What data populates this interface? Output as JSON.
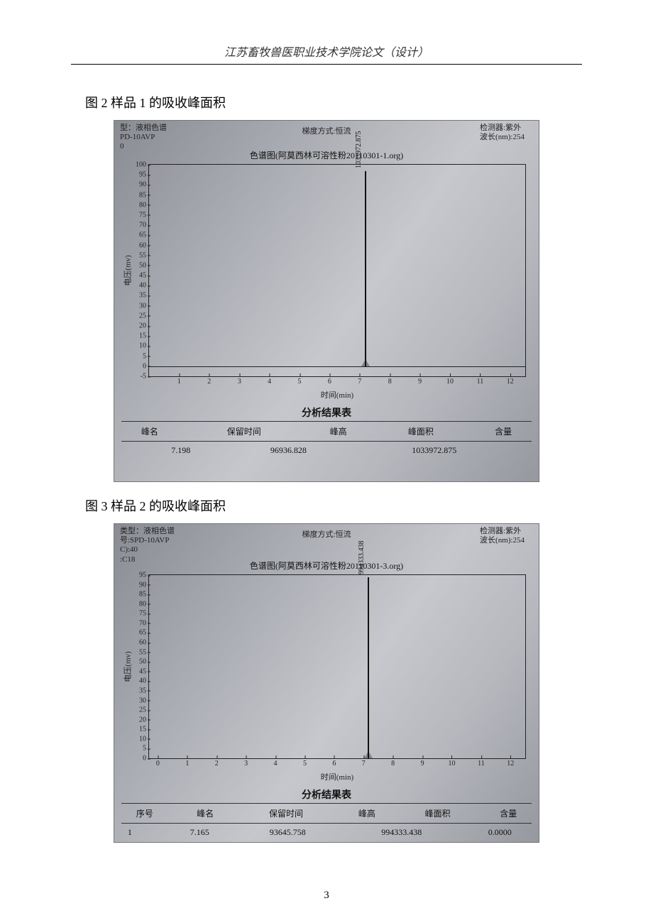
{
  "header": "江苏畜牧兽医职业技术学院论文（设计）",
  "page_number": "3",
  "figure1": {
    "caption": "图 2 样品 1 的吸收峰面积",
    "top_left": "型：液相色谱\nPD-10AVP\n0",
    "top_mid": "梯度方式:恒流",
    "top_right": "检测器:紫外\n波长(nm):254",
    "chart_title": "色谱图(阿莫西林可溶性粉20110301-1.org)",
    "y_label": "电压(mv)",
    "x_label": "时间(min)",
    "y_ticks": [
      -5,
      0,
      5,
      10,
      15,
      20,
      25,
      30,
      35,
      40,
      45,
      50,
      55,
      60,
      65,
      70,
      75,
      80,
      85,
      90,
      95,
      100
    ],
    "y_min": -5,
    "y_max": 100,
    "x_ticks": [
      1,
      2,
      3,
      4,
      5,
      6,
      7,
      8,
      9,
      10,
      11,
      12
    ],
    "x_min": 0,
    "x_max": 12.5,
    "peak_time": 7.198,
    "peak_height_mv": 97,
    "peak_label": "1033972.875",
    "results_title": "分析结果表",
    "columns": [
      "峰名",
      "保留时间",
      "峰高",
      "峰面积",
      "含量"
    ],
    "row": [
      "",
      "7.198",
      "96936.828",
      "1033972.875",
      ""
    ]
  },
  "figure2": {
    "caption": "图 3 样品 2 的吸收峰面积",
    "top_left": "类型：液相色谱\n号:SPD-10AVP\nC):40\n:C18",
    "top_mid": "梯度方式:恒流",
    "top_right": "检测器:紫外\n波长(nm):254",
    "chart_title": "色谱图(阿莫西林可溶性粉20110301-3.org)",
    "y_label": "电压(mv)",
    "x_label": "时间(min)",
    "y_ticks": [
      0,
      5,
      10,
      15,
      20,
      25,
      30,
      35,
      40,
      45,
      50,
      55,
      60,
      65,
      70,
      75,
      80,
      85,
      90,
      95
    ],
    "y_min": 0,
    "y_max": 95,
    "x_ticks": [
      0,
      1,
      2,
      3,
      4,
      5,
      6,
      7,
      8,
      9,
      10,
      11,
      12
    ],
    "x_min": -0.3,
    "x_max": 12.5,
    "peak_time": 7.165,
    "peak_height_mv": 94,
    "peak_label": "994333.438",
    "results_title": "分析结果表",
    "columns_pre": "序号",
    "columns": [
      "峰名",
      "保留时间",
      "峰高",
      "峰面积",
      "含量"
    ],
    "row": [
      "",
      "7.165",
      "93645.758",
      "994333.438",
      "0.0000"
    ]
  },
  "colors": {
    "text": "#111111",
    "border": "#222222",
    "page_bg": "#ffffff"
  }
}
